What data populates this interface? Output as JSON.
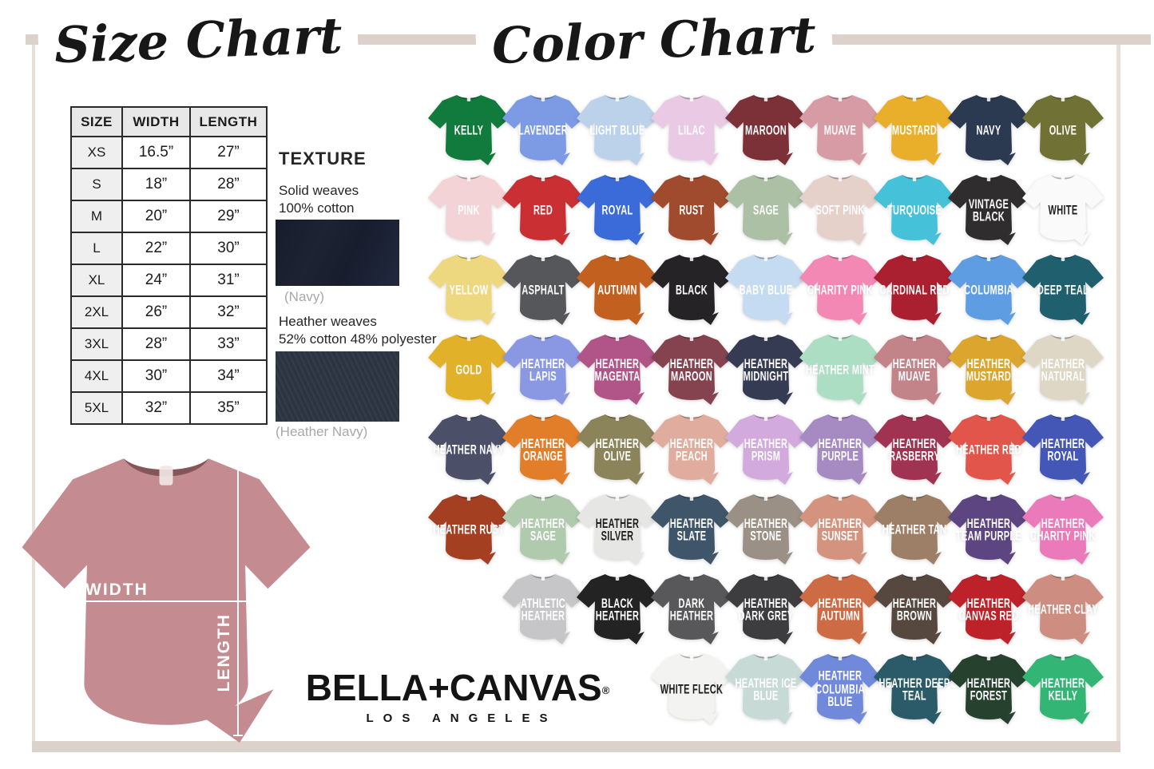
{
  "header": {
    "size_chart_title": "Size Chart",
    "color_chart_title": "Color Chart"
  },
  "size_table": {
    "columns": [
      "SIZE",
      "WIDTH",
      "LENGTH"
    ],
    "rows": [
      [
        "XS",
        "16.5”",
        "27”"
      ],
      [
        "S",
        "18”",
        "28”"
      ],
      [
        "M",
        "20”",
        "29”"
      ],
      [
        "L",
        "22”",
        "30”"
      ],
      [
        "XL",
        "24”",
        "31”"
      ],
      [
        "2XL",
        "26”",
        "32”"
      ],
      [
        "3XL",
        "28”",
        "33”"
      ],
      [
        "4XL",
        "30”",
        "34”"
      ],
      [
        "5XL",
        "32”",
        "35”"
      ]
    ]
  },
  "texture": {
    "title": "TEXTURE",
    "solid_line1": "Solid weaves",
    "solid_line2": "100% cotton",
    "solid_caption": "(Navy)",
    "solid_swatch_color": "#1c2231",
    "heather_line1": "Heather weaves",
    "heather_line2": "52% cotton 48% polyester",
    "heather_caption": "(Heather Navy)",
    "heather_swatch_color": "#2e3543"
  },
  "measurement": {
    "width_label": "WIDTH",
    "length_label": "LENGTH",
    "shirt_color": "#c48b90"
  },
  "logo": {
    "brand": "BELLA+CANVAS",
    "registered": "®",
    "city": "LOS ANGELES"
  },
  "color_chart": {
    "rows": [
      [
        {
          "label": "KELLY",
          "color": "#117a3d"
        },
        {
          "label": "LAVENDER",
          "color": "#7d9ae4"
        },
        {
          "label": "LIGHT BLUE",
          "color": "#bcd2ea"
        },
        {
          "label": "LILAC",
          "color": "#eac9e4"
        },
        {
          "label": "MAROON",
          "color": "#7c3138"
        },
        {
          "label": "MUAVE",
          "color": "#d69ba4"
        },
        {
          "label": "MUSTARD",
          "color": "#eaaf2a"
        },
        {
          "label": "NAVY",
          "color": "#2b3951"
        },
        {
          "label": "OLIVE",
          "color": "#6f7234"
        }
      ],
      [
        {
          "label": "PINK",
          "color": "#f3d3d6"
        },
        {
          "label": "RED",
          "color": "#c92f33"
        },
        {
          "label": "ROYAL",
          "color": "#3b6ad9"
        },
        {
          "label": "RUST",
          "color": "#a04a2e"
        },
        {
          "label": "SAGE",
          "color": "#abc0a4"
        },
        {
          "label": "SOFT PINK",
          "color": "#e6d0ca"
        },
        {
          "label": "TURQUOISE",
          "color": "#45c2da"
        },
        {
          "label": "VINTAGE BLACK",
          "color": "#302d2e"
        },
        {
          "label": "WHITE",
          "color": "#fafafa",
          "dark": true
        }
      ],
      [
        {
          "label": "YELLOW",
          "color": "#eed87f"
        },
        {
          "label": "ASPHALT",
          "color": "#56575b"
        },
        {
          "label": "AUTUMN",
          "color": "#c2601f"
        },
        {
          "label": "BLACK",
          "color": "#252326"
        },
        {
          "label": "BABY BLUE",
          "color": "#c4dbf2"
        },
        {
          "label": "CHARITY PINK",
          "color": "#f388b5"
        },
        {
          "label": "CARDINAL RED",
          "color": "#ab2030"
        },
        {
          "label": "COLUMBIA",
          "color": "#5f9de2"
        },
        {
          "label": "DEEP TEAL",
          "color": "#1f5f6e"
        }
      ],
      [
        {
          "label": "GOLD",
          "color": "#e2b12a"
        },
        {
          "label": "HEATHER LAPIS",
          "color": "#8a97e2"
        },
        {
          "label": "HEATHER MAGENTA",
          "color": "#b15487"
        },
        {
          "label": "HEATHER MAROON",
          "color": "#84434f"
        },
        {
          "label": "HEATHER MIDNIGHT",
          "color": "#353b52"
        },
        {
          "label": "HEATHER MINT",
          "color": "#abdec2"
        },
        {
          "label": "HEATHER MUAVE",
          "color": "#c28389"
        },
        {
          "label": "HEATHER MUSTARD",
          "color": "#dba52e"
        },
        {
          "label": "HEATHER NATURAL",
          "color": "#ded7c5"
        }
      ],
      [
        {
          "label": "HEATHER NAVY",
          "color": "#4b5068"
        },
        {
          "label": "HEATHER ORANGE",
          "color": "#e27d2a"
        },
        {
          "label": "HEATHER OLIVE",
          "color": "#8b8359"
        },
        {
          "label": "HEATHER PEACH",
          "color": "#dfac9d"
        },
        {
          "label": "HEATHER PRISM",
          "color": "#d2aade"
        },
        {
          "label": "HEATHER PURPLE",
          "color": "#a58bc2"
        },
        {
          "label": "HEATHER RASBERRY",
          "color": "#a03352"
        },
        {
          "label": "HEATHER RED",
          "color": "#e1554a"
        },
        {
          "label": "HEATHER ROYAL",
          "color": "#4557b6"
        }
      ],
      [
        {
          "label": "HEATHER RUST",
          "color": "#a53f21"
        },
        {
          "label": "HEATHER SAGE",
          "color": "#b0caae"
        },
        {
          "label": "HEATHER SILVER",
          "color": "#e6e6e4",
          "dark": true
        },
        {
          "label": "HEATHER SLATE",
          "color": "#3f5569"
        },
        {
          "label": "HEATHER STONE",
          "color": "#9a9086"
        },
        {
          "label": "HEATHER SUNSET",
          "color": "#d4937e"
        },
        {
          "label": "HEATHER TAN",
          "color": "#9c7f66"
        },
        {
          "label": "HEATHER TEAM PURPLE",
          "color": "#5d4581"
        },
        {
          "label": "HEATHER CHARITY PINK",
          "color": "#ea7aba"
        }
      ],
      [
        {
          "label": "ATHLETIC HEATHER",
          "color": "#c6c6c8"
        },
        {
          "label": "BLACK HEATHER",
          "color": "#232323"
        },
        {
          "label": "DARK HEATHER",
          "color": "#58585a"
        },
        {
          "label": "HEATHER DARK GREY",
          "color": "#3d3d3f"
        },
        {
          "label": "HEATHER AUTUMN",
          "color": "#cd6b45"
        },
        {
          "label": "HEATHER BROWN",
          "color": "#56473f"
        },
        {
          "label": "HEATHER CANVAS RED",
          "color": "#bd2129"
        },
        {
          "label": "HEATHER CLAY",
          "color": "#cd8e81"
        }
      ],
      [
        {
          "label": "WHITE FLECK",
          "color": "#f3f3f1",
          "dark": true
        },
        {
          "label": "HEATHER ICE BLUE",
          "color": "#c8dad6"
        },
        {
          "label": "HEATHER COLUMBIA BLUE",
          "color": "#7089da"
        },
        {
          "label": "HEATHER DEEP TEAL",
          "color": "#2b5b69"
        },
        {
          "label": "HEATHER FOREST",
          "color": "#27412f"
        },
        {
          "label": "HEATHER KELLY",
          "color": "#32b575"
        }
      ]
    ]
  }
}
